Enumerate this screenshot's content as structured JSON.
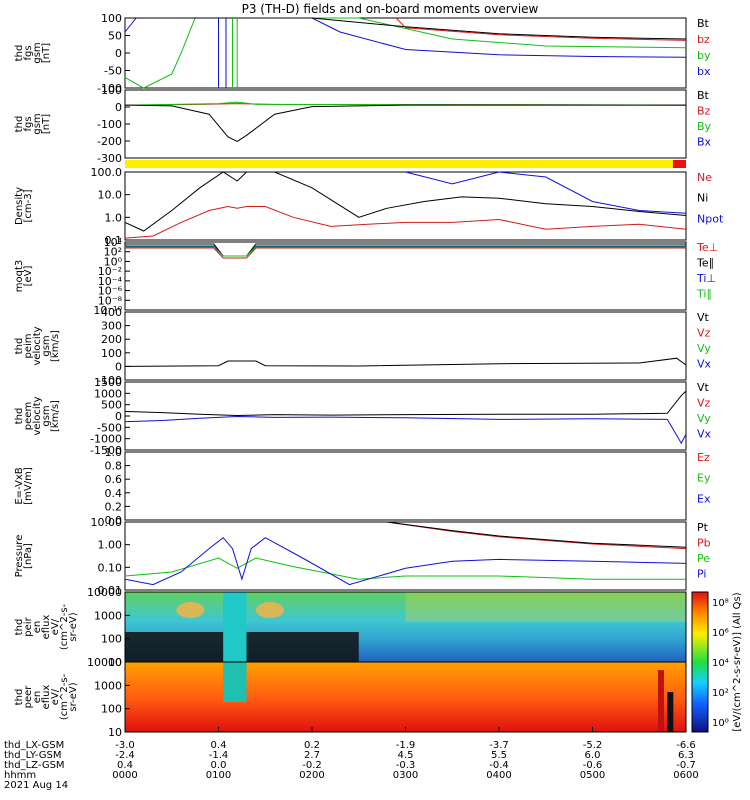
{
  "title": "P3 (TH-D) fields and on-board moments overview",
  "colors": {
    "black": "#000000",
    "red": "#d01c1c",
    "green": "#10c010",
    "blue": "#1010d8",
    "yellow": "#ffee00",
    "barred": "#ee1010"
  },
  "panels": [
    {
      "ylabel": [
        "thd",
        "fgs",
        "gsm",
        "[nT]"
      ],
      "ylim": [
        -100,
        100
      ],
      "ticks": [
        "100",
        "50",
        "0",
        "-50",
        "-100"
      ],
      "legend": [
        {
          "t": "Bt",
          "c": "black"
        },
        {
          "t": "bz",
          "c": "red"
        },
        {
          "t": "by",
          "c": "green"
        },
        {
          "t": "bx",
          "c": "blue"
        }
      ]
    },
    {
      "ylabel": [
        "thd",
        "fgs",
        "gsm",
        "[nT]"
      ],
      "ylim": [
        -350,
        100
      ],
      "ticks": [
        "100",
        "0",
        "-100",
        "-200",
        "-300"
      ],
      "legend": [
        {
          "t": "Bt",
          "c": "black"
        },
        {
          "t": "Bz",
          "c": "red"
        },
        {
          "t": "By",
          "c": "green"
        },
        {
          "t": "Bx",
          "c": "blue"
        }
      ]
    },
    {
      "ylabel": [
        "Density",
        "[cm-3]"
      ],
      "ylim": [
        0.1,
        100
      ],
      "log": true,
      "ticks": [
        "100.0",
        "10.0",
        "1.0",
        "0.1"
      ],
      "legend": [
        {
          "t": "Ne",
          "c": "red"
        },
        {
          "t": "Ni",
          "c": "black"
        },
        {
          "t": "Npot",
          "c": "blue"
        }
      ]
    },
    {
      "ylabel": [
        "moqt3",
        "[eV]"
      ],
      "log": true,
      "ticks": [
        "10⁴",
        "10²",
        "10⁰",
        "10⁻²",
        "10⁻⁴",
        "10⁻⁶",
        "10⁻⁸",
        "10⁻¹⁰"
      ],
      "legend": [
        {
          "t": "Te⊥",
          "c": "red"
        },
        {
          "t": "Te∥",
          "c": "black"
        },
        {
          "t": "Ti⊥",
          "c": "blue"
        },
        {
          "t": "Ti∥",
          "c": "green"
        }
      ]
    },
    {
      "ylabel": [
        "thd",
        "peim",
        "velocity",
        "gsm",
        "[km/s]"
      ],
      "ylim": [
        -100,
        400
      ],
      "ticks": [
        "400",
        "300",
        "200",
        "100",
        "0",
        "-100"
      ],
      "legend": [
        {
          "t": "Vt",
          "c": "black"
        },
        {
          "t": "Vz",
          "c": "red"
        },
        {
          "t": "Vy",
          "c": "green"
        },
        {
          "t": "Vx",
          "c": "blue"
        }
      ]
    },
    {
      "ylabel": [
        "thd",
        "peem",
        "velocity",
        "gsm",
        "[km/s]"
      ],
      "ylim": [
        -1500,
        1500
      ],
      "ticks": [
        "1500",
        "1000",
        "500",
        "0",
        "-500",
        "-1000",
        "-1500"
      ],
      "legend": [
        {
          "t": "Vt",
          "c": "black"
        },
        {
          "t": "Vz",
          "c": "red"
        },
        {
          "t": "Vy",
          "c": "green"
        },
        {
          "t": "Vx",
          "c": "blue"
        }
      ]
    },
    {
      "ylabel": [
        "E=-VxB",
        "[mV/m]"
      ],
      "ylim": [
        0,
        1
      ],
      "ticks": [
        "1.0",
        "0.8",
        "0.6",
        "0.4",
        "0.2",
        "0.0"
      ],
      "legend": [
        {
          "t": "Ez",
          "c": "red"
        },
        {
          "t": "Ey",
          "c": "green"
        },
        {
          "t": "Ex",
          "c": "blue"
        }
      ]
    },
    {
      "ylabel": [
        "Pressure",
        "[nPa]"
      ],
      "ylim": [
        0.005,
        30
      ],
      "log": true,
      "ticks": [
        "10.00",
        "1.00",
        "0.10",
        "0.01"
      ],
      "legend": [
        {
          "t": "Pt",
          "c": "black"
        },
        {
          "t": "Pb",
          "c": "red"
        },
        {
          "t": "Pe",
          "c": "green"
        },
        {
          "t": "Pi",
          "c": "blue"
        }
      ]
    },
    {
      "ylabel": [
        "thd",
        "peir",
        "en",
        "eflux",
        "eV/",
        "(cm^2-s-",
        "sr-eV)"
      ],
      "ylim": [
        5,
        20000
      ],
      "log": true,
      "ticks": [
        "10000",
        "1000",
        "100",
        "10"
      ]
    },
    {
      "ylabel": [
        "thd",
        "peer",
        "en",
        "eflux",
        "eV/",
        "(cm^2-s-",
        "sr-eV)"
      ],
      "ylim": [
        5,
        20000
      ],
      "log": true,
      "ticks": [
        "10000",
        "1000",
        "100",
        "10"
      ]
    }
  ],
  "colorbar": {
    "label": "[eV/(cm^2-s-sr-eV)] (All Qs)",
    "ticks": [
      "10⁸",
      "10⁶",
      "10⁴",
      "10²",
      "10⁰"
    ]
  },
  "chart_data": {
    "type": "line",
    "title": "P3 (TH-D) fields and on-board moments overview",
    "x_label_rows": [
      "thd_LX-GSM",
      "thd_LY-GSM",
      "thd_LZ-GSM",
      "hhmm",
      "2021 Aug 14"
    ],
    "x_ticks": [
      {
        "lx": "-3.0",
        "ly": "-2.4",
        "lz": "0.4",
        "t": "0000"
      },
      {
        "lx": "0.4",
        "ly": "-1.4",
        "lz": "0.0",
        "t": "0100"
      },
      {
        "lx": "0.2",
        "ly": "2.7",
        "lz": "-0.2",
        "t": "0200"
      },
      {
        "lx": "-1.9",
        "ly": "4.5",
        "lz": "-0.3",
        "t": "0300"
      },
      {
        "lx": "-3.7",
        "ly": "5.5",
        "lz": "-0.4",
        "t": "0400"
      },
      {
        "lx": "-5.2",
        "ly": "6.0",
        "lz": "-0.6",
        "t": "0500"
      },
      {
        "lx": "-6.6",
        "ly": "6.3",
        "lz": "-0.7",
        "t": "0600"
      }
    ],
    "xlim_hours": [
      0,
      6
    ],
    "series": {
      "fgs_bt": [
        [
          0,
          100
        ],
        [
          0.3,
          100
        ],
        [
          0.5,
          100
        ],
        [
          2.0,
          100
        ],
        [
          3.0,
          75
        ],
        [
          4.0,
          55
        ],
        [
          5.0,
          45
        ],
        [
          6.0,
          40
        ]
      ],
      "fgs_bz": [
        [
          2.9,
          100
        ],
        [
          3.0,
          72
        ],
        [
          4.0,
          52
        ],
        [
          5.0,
          42
        ],
        [
          6.0,
          36
        ]
      ],
      "fgs_by": [
        [
          0,
          -70
        ],
        [
          0.2,
          -100
        ],
        [
          0.5,
          -60
        ],
        [
          0.6,
          0
        ],
        [
          0.75,
          100
        ],
        [
          2.5,
          100
        ],
        [
          3.5,
          40
        ],
        [
          4.5,
          20
        ],
        [
          6.0,
          15
        ]
      ],
      "fgs_bx": [
        [
          0,
          60
        ],
        [
          0.12,
          100
        ],
        [
          0.2,
          100
        ],
        [
          2.0,
          100
        ],
        [
          2.3,
          60
        ],
        [
          3.0,
          10
        ],
        [
          4.0,
          -5
        ],
        [
          5.0,
          -10
        ],
        [
          6.0,
          -12
        ]
      ],
      "fgs2_bt": [
        [
          0,
          0
        ],
        [
          0.5,
          -5
        ],
        [
          0.9,
          -60
        ],
        [
          1.1,
          -210
        ],
        [
          1.2,
          -240
        ],
        [
          1.3,
          -200
        ],
        [
          1.6,
          -60
        ],
        [
          2.0,
          -10
        ],
        [
          3.0,
          0
        ],
        [
          6.0,
          0
        ]
      ],
      "fgs2_bz": [
        [
          0,
          0
        ],
        [
          0.8,
          5
        ],
        [
          1.2,
          10
        ],
        [
          1.6,
          5
        ],
        [
          6.0,
          0
        ]
      ],
      "fgs2_by": [
        [
          0,
          0
        ],
        [
          1.0,
          10
        ],
        [
          1.2,
          20
        ],
        [
          1.4,
          5
        ],
        [
          6.0,
          0
        ]
      ],
      "dens_ni": [
        [
          0,
          0.6
        ],
        [
          0.2,
          0.25
        ],
        [
          0.5,
          2
        ],
        [
          0.8,
          20
        ],
        [
          1.05,
          150
        ],
        [
          1.2,
          40
        ],
        [
          1.3,
          150
        ],
        [
          1.6,
          150
        ],
        [
          2.0,
          20
        ],
        [
          2.5,
          1.0
        ],
        [
          2.8,
          2.5
        ],
        [
          3.2,
          5
        ],
        [
          3.6,
          8
        ],
        [
          4.0,
          7
        ],
        [
          4.5,
          4
        ],
        [
          5.0,
          3
        ],
        [
          5.5,
          1.8
        ],
        [
          6.0,
          1.2
        ]
      ],
      "dens_ne": [
        [
          0,
          0.12
        ],
        [
          0.3,
          0.15
        ],
        [
          0.6,
          0.6
        ],
        [
          0.9,
          2
        ],
        [
          1.1,
          3
        ],
        [
          1.2,
          2.5
        ],
        [
          1.3,
          3
        ],
        [
          1.5,
          3
        ],
        [
          1.8,
          1
        ],
        [
          2.2,
          0.4
        ],
        [
          2.6,
          0.5
        ],
        [
          3.0,
          0.6
        ],
        [
          3.5,
          0.6
        ],
        [
          4.0,
          0.8
        ],
        [
          4.5,
          0.3
        ],
        [
          5.0,
          0.4
        ],
        [
          5.5,
          0.5
        ],
        [
          6.0,
          0.3
        ]
      ],
      "dens_npot": [
        [
          3.0,
          150
        ],
        [
          3.5,
          30
        ],
        [
          4.0,
          150
        ],
        [
          4.5,
          60
        ],
        [
          5.0,
          5
        ],
        [
          5.5,
          2
        ],
        [
          6.0,
          1.5
        ]
      ],
      "peim_vt": [
        [
          0,
          0
        ],
        [
          1.0,
          5
        ],
        [
          1.1,
          40
        ],
        [
          1.4,
          40
        ],
        [
          1.5,
          5
        ],
        [
          2.5,
          3
        ],
        [
          4.0,
          20
        ],
        [
          5.5,
          25
        ],
        [
          5.9,
          60
        ],
        [
          6.0,
          10
        ]
      ],
      "peem_vt": [
        [
          0,
          200
        ],
        [
          0.4,
          150
        ],
        [
          0.8,
          80
        ],
        [
          1.2,
          20
        ],
        [
          1.6,
          60
        ],
        [
          2.2,
          40
        ],
        [
          3.0,
          60
        ],
        [
          4.0,
          80
        ],
        [
          5.0,
          80
        ],
        [
          5.8,
          120
        ],
        [
          5.95,
          900
        ],
        [
          6.0,
          1100
        ]
      ],
      "peem_vx": [
        [
          0,
          -250
        ],
        [
          0.4,
          -200
        ],
        [
          0.8,
          -100
        ],
        [
          1.2,
          -20
        ],
        [
          1.6,
          -60
        ],
        [
          2.2,
          -50
        ],
        [
          3.0,
          -80
        ],
        [
          4.0,
          -150
        ],
        [
          5.0,
          -120
        ],
        [
          5.8,
          -150
        ],
        [
          5.95,
          -1200
        ],
        [
          6.0,
          -800
        ]
      ],
      "pres_pt": [
        [
          2.8,
          30
        ],
        [
          3.5,
          10
        ],
        [
          4.0,
          5
        ],
        [
          5.0,
          2
        ],
        [
          6.0,
          1.2
        ]
      ],
      "pres_pb": [
        [
          2.8,
          30
        ],
        [
          3.5,
          9
        ],
        [
          4.0,
          4.5
        ],
        [
          5.0,
          1.8
        ],
        [
          6.0,
          1.0
        ]
      ],
      "pres_pi": [
        [
          0,
          0.02
        ],
        [
          0.3,
          0.01
        ],
        [
          0.6,
          0.05
        ],
        [
          0.9,
          1
        ],
        [
          1.05,
          4
        ],
        [
          1.15,
          1
        ],
        [
          1.25,
          0.02
        ],
        [
          1.35,
          1
        ],
        [
          1.5,
          4
        ],
        [
          1.9,
          0.3
        ],
        [
          2.4,
          0.01
        ],
        [
          3.0,
          0.08
        ],
        [
          3.5,
          0.2
        ],
        [
          4.0,
          0.25
        ],
        [
          5.0,
          0.2
        ],
        [
          6.0,
          0.15
        ]
      ],
      "pres_pe": [
        [
          0,
          0.03
        ],
        [
          0.5,
          0.05
        ],
        [
          1.0,
          0.3
        ],
        [
          1.2,
          0.08
        ],
        [
          1.4,
          0.3
        ],
        [
          1.8,
          0.1
        ],
        [
          2.5,
          0.02
        ],
        [
          3.0,
          0.03
        ],
        [
          4.0,
          0.03
        ],
        [
          5.0,
          0.02
        ],
        [
          6.0,
          0.02
        ]
      ]
    }
  }
}
